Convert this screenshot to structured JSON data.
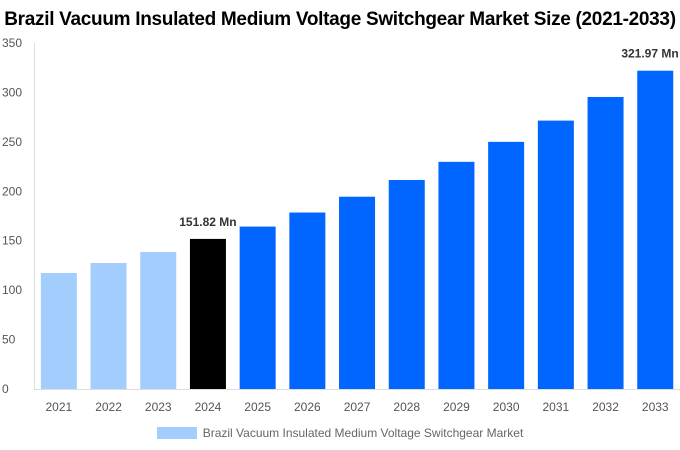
{
  "chart_data": {
    "type": "bar",
    "title": "Brazil Vacuum Insulated Medium Voltage Switchgear Market Size (2021-2033)",
    "categories": [
      "2021",
      "2022",
      "2023",
      "2024",
      "2025",
      "2026",
      "2027",
      "2028",
      "2029",
      "2030",
      "2031",
      "2032",
      "2033"
    ],
    "series": [
      {
        "name": "Brazil Vacuum Insulated Medium Voltage Switchgear Market",
        "values": [
          117.3,
          127.5,
          138.6,
          151.82,
          164.3,
          178.5,
          194.5,
          211.4,
          229.8,
          250.0,
          271.5,
          295.4,
          321.97
        ]
      }
    ],
    "data_labels": {
      "3": "151.82 Mn",
      "12": "321.97 Mn"
    },
    "ylim": [
      0,
      350
    ],
    "yticks": [
      0,
      50,
      100,
      150,
      200,
      250,
      300,
      350
    ],
    "grid": false,
    "legend_position": "bottom",
    "colors": {
      "historical": "#a3cdfc",
      "base_year": "#000000",
      "forecast": "#0066ff"
    },
    "color_by_category": [
      "historical",
      "historical",
      "historical",
      "base_year",
      "forecast",
      "forecast",
      "forecast",
      "forecast",
      "forecast",
      "forecast",
      "forecast",
      "forecast",
      "forecast"
    ]
  }
}
